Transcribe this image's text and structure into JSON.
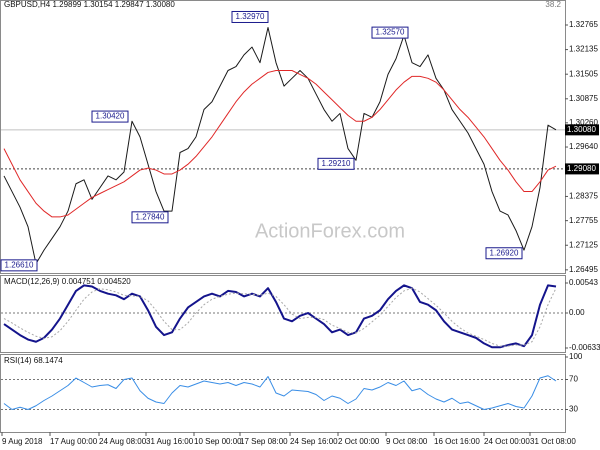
{
  "watermark": "ActionForex.com",
  "chart_data": [
    {
      "type": "line",
      "title": "GBPUSD,H4  1.29899 1.30154 1.29847 1.30080",
      "corner_label": "38.2",
      "xlim": [
        0,
        565
      ],
      "ylim": [
        1.2644,
        1.332
      ],
      "grid": false,
      "yticks": [
        1.32765,
        1.32135,
        1.31505,
        1.30875,
        {
          "value": 1.3026,
          "label": "1.30260"
        },
        {
          "value": 1.2964,
          "label": "1.29640"
        },
        {
          "value": 1.2901,
          "label": "1.29010"
        },
        1.28375,
        1.27755,
        1.27125,
        1.26495
      ],
      "x": [
        4,
        12,
        20,
        28,
        36,
        44,
        52,
        60,
        68,
        76,
        84,
        92,
        100,
        108,
        116,
        124,
        132,
        140,
        148,
        156,
        164,
        172,
        180,
        188,
        196,
        204,
        212,
        220,
        228,
        236,
        244,
        252,
        260,
        268,
        276,
        284,
        292,
        300,
        308,
        316,
        324,
        332,
        340,
        348,
        356,
        364,
        372,
        380,
        388,
        396,
        404,
        412,
        420,
        428,
        436,
        444,
        452,
        460,
        468,
        476,
        484,
        492,
        500,
        508,
        516,
        524,
        532,
        540,
        548,
        556
      ],
      "series": [
        {
          "name": "Close",
          "color": "#1a1a1a",
          "line_width": 1,
          "dash": false,
          "values": [
            1.289,
            1.285,
            1.281,
            1.276,
            1.2665,
            1.27,
            1.273,
            1.276,
            1.28,
            1.287,
            1.288,
            1.283,
            1.286,
            1.289,
            1.288,
            1.29,
            1.303,
            1.299,
            1.292,
            1.285,
            1.28,
            1.28,
            1.295,
            1.296,
            1.299,
            1.306,
            1.308,
            1.312,
            1.316,
            1.317,
            1.32,
            1.322,
            1.318,
            1.327,
            1.318,
            1.312,
            1.314,
            1.316,
            1.314,
            1.31,
            1.306,
            1.303,
            1.305,
            1.296,
            1.293,
            1.305,
            1.304,
            1.308,
            1.315,
            1.319,
            1.325,
            1.318,
            1.317,
            1.32,
            1.314,
            1.311,
            1.306,
            1.303,
            1.3,
            1.296,
            1.292,
            1.285,
            1.28,
            1.279,
            1.275,
            1.27,
            1.276,
            1.286,
            1.302,
            1.3008
          ]
        },
        {
          "name": "MA",
          "color": "#e02828",
          "line_width": 1,
          "dash": false,
          "values": [
            1.296,
            1.292,
            1.288,
            1.285,
            1.282,
            1.28,
            1.2785,
            1.2785,
            1.279,
            1.2805,
            1.282,
            1.2835,
            1.2845,
            1.2855,
            1.2865,
            1.2875,
            1.289,
            1.2905,
            1.291,
            1.2905,
            1.2895,
            1.2895,
            1.2905,
            1.292,
            1.294,
            1.2965,
            1.299,
            1.302,
            1.305,
            1.308,
            1.3105,
            1.3125,
            1.314,
            1.3155,
            1.316,
            1.316,
            1.316,
            1.315,
            1.314,
            1.3125,
            1.3105,
            1.3085,
            1.3065,
            1.3045,
            1.303,
            1.303,
            1.304,
            1.306,
            1.3085,
            1.311,
            1.313,
            1.3145,
            1.3145,
            1.314,
            1.313,
            1.311,
            1.3085,
            1.306,
            1.304,
            1.3015,
            1.299,
            1.296,
            1.293,
            1.2905,
            1.2875,
            1.285,
            1.285,
            1.2875,
            1.2905,
            1.2915
          ]
        }
      ],
      "hlines": [
        {
          "value": 1.3008,
          "label": "1.30080",
          "style": "solid"
        },
        {
          "value": 1.2908,
          "label": "1.29080",
          "style": "dotted"
        }
      ],
      "annotations": [
        {
          "value": 1.3297,
          "label": "1.32970",
          "x": 268
        },
        {
          "value": 1.3042,
          "label": "1.30420",
          "x": 128
        },
        {
          "value": 1.2784,
          "label": "1.27840",
          "x": 168
        },
        {
          "value": 1.2921,
          "label": "1.29210",
          "x": 354
        },
        {
          "value": 1.3257,
          "label": "1.32570",
          "x": 408
        },
        {
          "value": 1.2692,
          "label": "1.26920",
          "x": 522
        },
        {
          "value": 1.2661,
          "label": "1.26610",
          "x": 37
        }
      ]
    },
    {
      "type": "line",
      "title": "MACD(12,26,9) 0.004751 0.004520",
      "xlim": [
        0,
        565
      ],
      "ylim": [
        -0.006332,
        0.00543
      ],
      "grid": true,
      "yticks": [
        0.00543,
        {
          "value": 0,
          "label": "0.00"
        },
        -0.006332
      ],
      "x": [
        4,
        12,
        20,
        28,
        36,
        44,
        52,
        60,
        68,
        76,
        84,
        92,
        100,
        108,
        116,
        124,
        132,
        140,
        148,
        156,
        164,
        172,
        180,
        188,
        196,
        204,
        212,
        220,
        228,
        236,
        244,
        252,
        260,
        268,
        276,
        284,
        292,
        300,
        308,
        316,
        324,
        332,
        340,
        348,
        356,
        364,
        372,
        380,
        388,
        396,
        404,
        412,
        420,
        428,
        436,
        444,
        452,
        460,
        468,
        476,
        484,
        492,
        500,
        508,
        516,
        524,
        532,
        540,
        548,
        556
      ],
      "series": [
        {
          "name": "MACD",
          "color": "#14148c",
          "line_width": 2,
          "dash": false,
          "values": [
            -0.002,
            -0.003,
            -0.004,
            -0.0048,
            -0.0052,
            -0.0045,
            -0.003,
            -0.001,
            0.0015,
            0.004,
            0.005,
            0.0048,
            0.004,
            0.0035,
            0.0032,
            0.0025,
            0.0035,
            0.003,
            0.0005,
            -0.0025,
            -0.004,
            -0.0035,
            -0.001,
            0.001,
            0.002,
            0.003,
            0.0035,
            0.003,
            0.004,
            0.0038,
            0.003,
            0.0035,
            0.003,
            0.0045,
            0.002,
            -0.001,
            -0.0015,
            -0.0005,
            0.0,
            -0.001,
            -0.002,
            -0.0035,
            -0.003,
            -0.004,
            -0.0035,
            -0.001,
            -0.0005,
            0.0005,
            0.0025,
            0.004,
            0.005,
            0.0045,
            0.002,
            0.0015,
            0.0005,
            -0.0015,
            -0.003,
            -0.0035,
            -0.004,
            -0.0045,
            -0.0055,
            -0.0062,
            -0.0062,
            -0.0058,
            -0.0055,
            -0.006,
            -0.004,
            0.0015,
            0.005,
            0.0048
          ]
        },
        {
          "name": "Signal",
          "color": "#a8a8a8",
          "line_width": 1,
          "dash": true,
          "values": [
            -0.001,
            -0.0018,
            -0.0027,
            -0.0035,
            -0.0042,
            -0.0046,
            -0.0043,
            -0.0032,
            -0.0015,
            0.0005,
            0.0025,
            0.0038,
            0.0044,
            0.0042,
            0.0038,
            0.0032,
            0.0031,
            0.003,
            0.0022,
            0.0005,
            -0.0015,
            -0.003,
            -0.003,
            -0.0018,
            0.0,
            0.0015,
            0.0025,
            0.003,
            0.0034,
            0.0036,
            0.0035,
            0.0034,
            0.0032,
            0.0036,
            0.003,
            0.0015,
            -0.0002,
            -0.001,
            -0.0008,
            -0.0008,
            -0.0012,
            -0.0022,
            -0.0028,
            -0.0035,
            -0.0036,
            -0.0028,
            -0.0016,
            -0.0004,
            0.0012,
            0.0028,
            0.004,
            0.0045,
            0.0038,
            0.0026,
            0.0014,
            0.0,
            -0.0015,
            -0.0027,
            -0.0036,
            -0.0042,
            -0.0048,
            -0.0055,
            -0.006,
            -0.006,
            -0.0058,
            -0.0058,
            -0.0052,
            -0.0025,
            0.0015,
            0.0045
          ]
        }
      ]
    },
    {
      "type": "line",
      "title": "RSI(14) 68.1474",
      "xlim": [
        0,
        565
      ],
      "ylim": [
        0,
        100
      ],
      "grid": true,
      "yticks": [
        100,
        70,
        30
      ],
      "xticks": [
        {
          "value": 2,
          "label": "9 Aug 2018"
        },
        {
          "value": 50,
          "label": "17 Aug 00:00"
        },
        {
          "value": 99,
          "label": "24 Aug 08:00"
        },
        {
          "value": 146,
          "label": "31 Aug 16:00"
        },
        {
          "value": 194,
          "label": "10 Sep 00:00"
        },
        {
          "value": 240,
          "label": "17 Sep 08:00"
        },
        {
          "value": 290,
          "label": "24 Sep 16:00"
        },
        {
          "value": 338,
          "label": "2 Oct 00:00"
        },
        {
          "value": 386,
          "label": "9 Oct 08:00"
        },
        {
          "value": 434,
          "label": "16 Oct 16:00"
        },
        {
          "value": 484,
          "label": "24 Oct 00:00"
        },
        {
          "value": 530,
          "label": "31 Oct 08:00"
        }
      ],
      "x": [
        4,
        12,
        20,
        28,
        36,
        44,
        52,
        60,
        68,
        76,
        84,
        92,
        100,
        108,
        116,
        124,
        132,
        140,
        148,
        156,
        164,
        172,
        180,
        188,
        196,
        204,
        212,
        220,
        228,
        236,
        244,
        252,
        260,
        268,
        276,
        284,
        292,
        300,
        308,
        316,
        324,
        332,
        340,
        348,
        356,
        364,
        372,
        380,
        388,
        396,
        404,
        412,
        420,
        428,
        436,
        444,
        452,
        460,
        468,
        476,
        484,
        492,
        500,
        508,
        516,
        524,
        532,
        540,
        548,
        556
      ],
      "series": [
        {
          "name": "RSI",
          "color": "#3a8ee6",
          "line_width": 1,
          "dash": false,
          "values": [
            38,
            30,
            33,
            30,
            35,
            42,
            48,
            55,
            62,
            72,
            66,
            60,
            62,
            63,
            58,
            70,
            72,
            55,
            45,
            40,
            38,
            52,
            62,
            60,
            64,
            68,
            66,
            64,
            66,
            62,
            66,
            64,
            60,
            74,
            52,
            48,
            56,
            55,
            54,
            50,
            42,
            48,
            45,
            38,
            44,
            58,
            56,
            60,
            66,
            62,
            68,
            55,
            58,
            50,
            44,
            40,
            45,
            38,
            40,
            35,
            30,
            32,
            35,
            38,
            34,
            32,
            48,
            72,
            75,
            68
          ]
        }
      ]
    }
  ]
}
